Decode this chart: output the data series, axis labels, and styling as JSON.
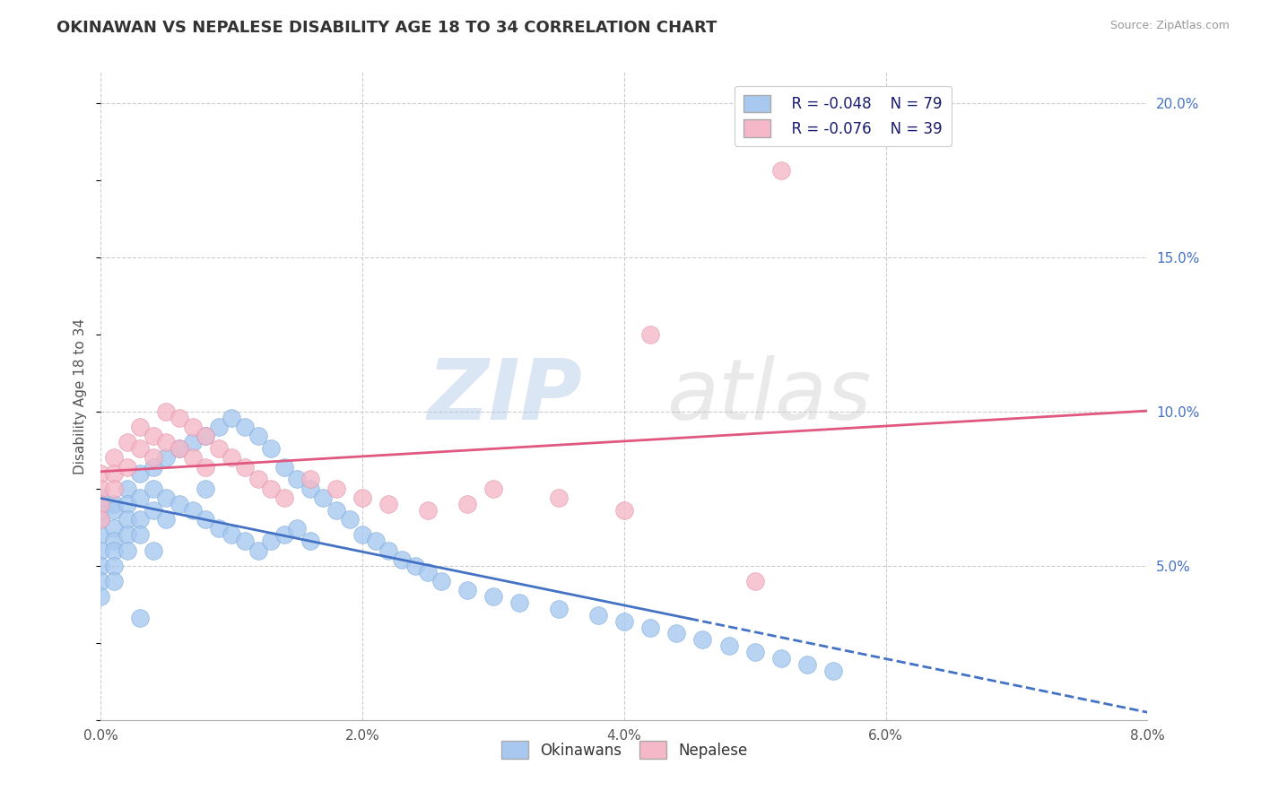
{
  "title": "OKINAWAN VS NEPALESE DISABILITY AGE 18 TO 34 CORRELATION CHART",
  "source": "Source: ZipAtlas.com",
  "ylabel": "Disability Age 18 to 34",
  "legend_r": [
    "R = -0.048",
    "R = -0.076"
  ],
  "legend_n": [
    "N = 79",
    "N = 39"
  ],
  "okinawan_color": "#A8C8F0",
  "nepalese_color": "#F5B8C8",
  "okinawan_line_color": "#4472C4",
  "nepalese_line_color": "#E05880",
  "xlim": [
    0.0,
    0.08
  ],
  "ylim": [
    0.0,
    0.21
  ],
  "x_ticks": [
    0.0,
    0.02,
    0.04,
    0.06,
    0.08
  ],
  "x_tick_labels": [
    "0.0%",
    "2.0%",
    "4.0%",
    "6.0%",
    "8.0%"
  ],
  "y_ticks": [
    0.0,
    0.05,
    0.1,
    0.15,
    0.2
  ],
  "y_tick_labels_right": [
    "",
    "5.0%",
    "10.0%",
    "15.0%",
    "20.0%"
  ],
  "watermark_zip": "ZIP",
  "watermark_atlas": "atlas",
  "background_color": "#FFFFFF",
  "grid_color": "#CCCCCC",
  "ok_x": [
    0.0,
    0.0,
    0.0,
    0.0,
    0.0,
    0.0,
    0.0,
    0.0,
    0.001,
    0.001,
    0.001,
    0.001,
    0.001,
    0.001,
    0.001,
    0.002,
    0.002,
    0.002,
    0.002,
    0.002,
    0.003,
    0.003,
    0.003,
    0.003,
    0.004,
    0.004,
    0.004,
    0.004,
    0.005,
    0.005,
    0.005,
    0.006,
    0.006,
    0.007,
    0.007,
    0.008,
    0.008,
    0.009,
    0.009,
    0.01,
    0.01,
    0.011,
    0.011,
    0.012,
    0.012,
    0.013,
    0.013,
    0.014,
    0.014,
    0.015,
    0.015,
    0.016,
    0.016,
    0.017,
    0.018,
    0.019,
    0.02,
    0.021,
    0.022,
    0.023,
    0.024,
    0.025,
    0.026,
    0.028,
    0.03,
    0.032,
    0.035,
    0.038,
    0.04,
    0.042,
    0.044,
    0.046,
    0.048,
    0.05,
    0.052,
    0.054,
    0.056,
    0.008,
    0.003
  ],
  "ok_y": [
    0.065,
    0.068,
    0.072,
    0.06,
    0.055,
    0.05,
    0.045,
    0.04,
    0.07,
    0.068,
    0.062,
    0.058,
    0.055,
    0.05,
    0.045,
    0.075,
    0.07,
    0.065,
    0.06,
    0.055,
    0.08,
    0.072,
    0.065,
    0.06,
    0.082,
    0.075,
    0.068,
    0.055,
    0.085,
    0.072,
    0.065,
    0.088,
    0.07,
    0.09,
    0.068,
    0.092,
    0.065,
    0.095,
    0.062,
    0.098,
    0.06,
    0.095,
    0.058,
    0.092,
    0.055,
    0.088,
    0.058,
    0.082,
    0.06,
    0.078,
    0.062,
    0.075,
    0.058,
    0.072,
    0.068,
    0.065,
    0.06,
    0.058,
    0.055,
    0.052,
    0.05,
    0.048,
    0.045,
    0.042,
    0.04,
    0.038,
    0.036,
    0.034,
    0.032,
    0.03,
    0.028,
    0.026,
    0.024,
    0.022,
    0.02,
    0.018,
    0.016,
    0.075,
    0.033
  ],
  "nep_x": [
    0.0,
    0.0,
    0.0,
    0.0,
    0.001,
    0.001,
    0.001,
    0.002,
    0.002,
    0.003,
    0.003,
    0.004,
    0.004,
    0.005,
    0.005,
    0.006,
    0.006,
    0.007,
    0.007,
    0.008,
    0.008,
    0.009,
    0.01,
    0.011,
    0.012,
    0.013,
    0.014,
    0.016,
    0.018,
    0.02,
    0.022,
    0.025,
    0.028,
    0.03,
    0.035,
    0.04,
    0.042,
    0.05,
    0.052
  ],
  "nep_y": [
    0.08,
    0.075,
    0.07,
    0.065,
    0.085,
    0.08,
    0.075,
    0.09,
    0.082,
    0.095,
    0.088,
    0.092,
    0.085,
    0.1,
    0.09,
    0.098,
    0.088,
    0.095,
    0.085,
    0.092,
    0.082,
    0.088,
    0.085,
    0.082,
    0.078,
    0.075,
    0.072,
    0.078,
    0.075,
    0.072,
    0.07,
    0.068,
    0.07,
    0.075,
    0.072,
    0.068,
    0.125,
    0.045,
    0.178
  ]
}
